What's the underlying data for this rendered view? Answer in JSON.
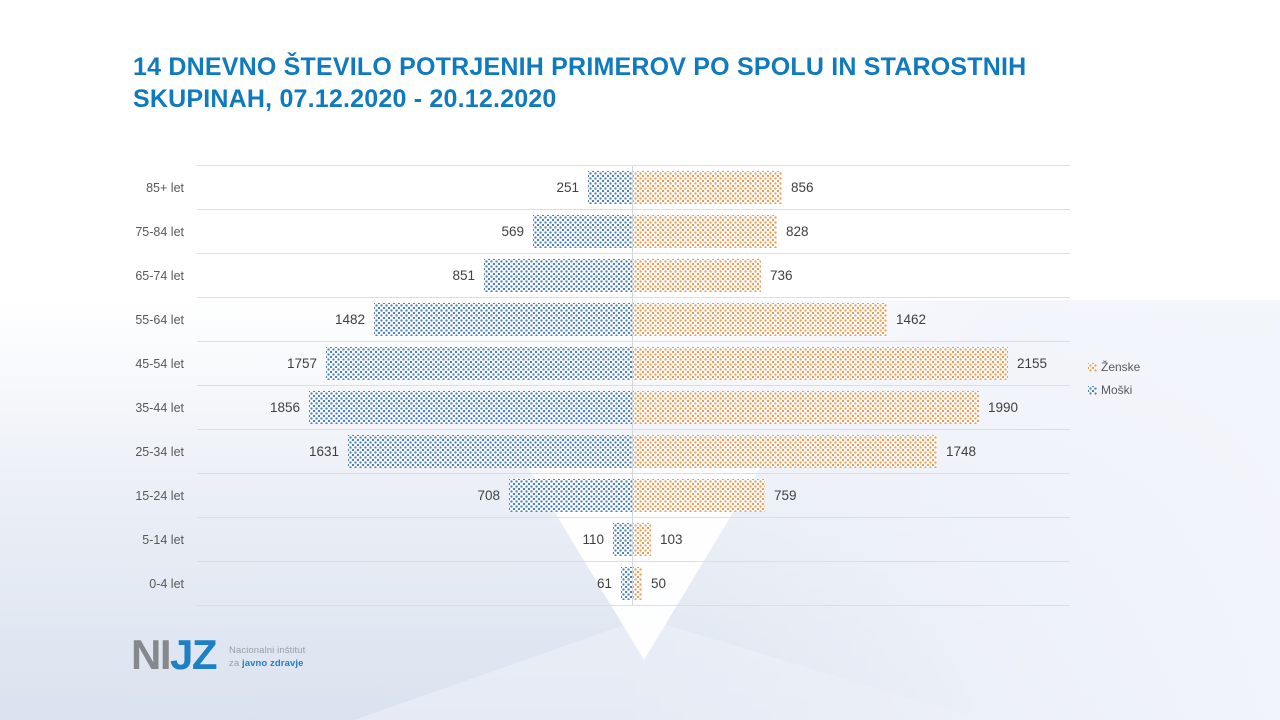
{
  "slide": {
    "title_line1": "14 DNEVNO ŠTEVILO POTRJENIH PRIMEROV PO SPOLU IN STAROSTNIH",
    "title_line2": "SKUPINAH, 07.12.2020 - 20.12.2020",
    "title_color": "#0f7abe"
  },
  "legend": {
    "position": "right",
    "items": [
      {
        "label": "Ženske",
        "color": "#ee9c55"
      },
      {
        "label": "Moški",
        "color": "#4d80bc"
      }
    ]
  },
  "logo": {
    "acronym_gray": "NI",
    "acronym_blue": "JZ",
    "line1": "Nacionalni inštitut",
    "line2_gray": "za ",
    "line2_blue": "javno zdravje"
  },
  "chart_data": {
    "type": "bar",
    "orientation": "horizontal-diverging",
    "title": "14 DNEVNO ŠTEVILO POTRJENIH PRIMEROV PO SPOLU IN STAROSTNIH SKUPINAH, 07.12.2020 - 20.12.2020",
    "categories": [
      "85+ let",
      "75-84 let",
      "65-74 let",
      "55-64 let",
      "45-54 let",
      "35-44 let",
      "25-34 let",
      "15-24 let",
      "5-14 let",
      "0-4 let"
    ],
    "series": [
      {
        "name": "Moški",
        "side": "left",
        "color": "#4d80bc",
        "pattern": "dotted",
        "values": [
          251,
          569,
          851,
          1482,
          1757,
          1856,
          1631,
          708,
          110,
          61
        ]
      },
      {
        "name": "Ženske",
        "side": "right",
        "color": "#ee9c55",
        "pattern": "dotted",
        "values": [
          856,
          828,
          736,
          1462,
          2155,
          1990,
          1748,
          759,
          103,
          50
        ]
      }
    ],
    "xmax": 2500,
    "grid": "horizontal-row-separators",
    "value_labels": "outside-bar-ends",
    "legend_position": "right"
  }
}
